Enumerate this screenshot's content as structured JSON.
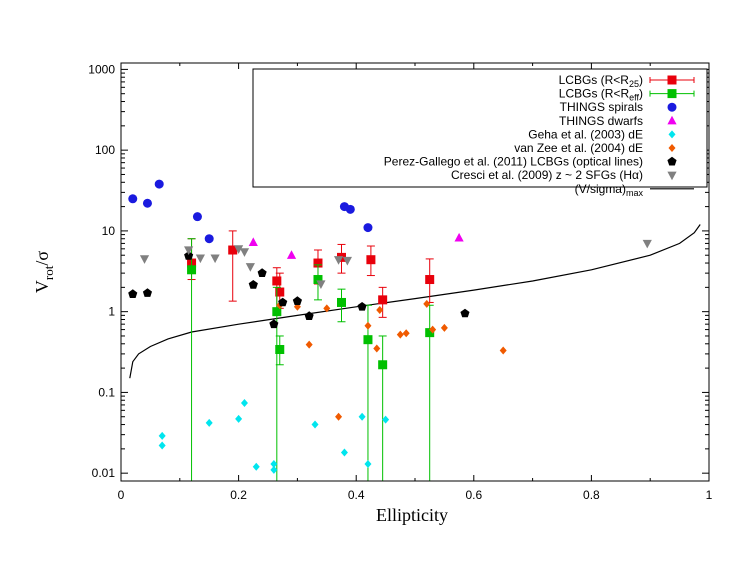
{
  "chart_data": {
    "type": "scatter",
    "xlabel": "Ellipticity",
    "ylabel": {
      "main": "V",
      "sub": "rot",
      "tail": "/σ"
    },
    "xlim": [
      0,
      1
    ],
    "ylim": [
      0.008,
      1200
    ],
    "yscale": "log",
    "x_ticks": [
      0,
      0.2,
      0.4,
      0.6,
      0.8,
      1
    ],
    "x_tick_labels": [
      "0",
      "0.2",
      "0.4",
      "0.6",
      "0.8",
      "1"
    ],
    "y_ticks": [
      0.01,
      0.1,
      1,
      10,
      100,
      1000
    ],
    "y_tick_labels": [
      "0.01",
      "0.1",
      "1",
      "10",
      "100",
      "1000"
    ],
    "grid": false,
    "legend_position": "top-right",
    "series": [
      {
        "id": "lcbg-r25",
        "legend": {
          "main": "LCBGs (R<R",
          "sub": "25",
          "tail": ")"
        },
        "marker": "square",
        "color": "#e8000b",
        "points": [
          {
            "x": 0.12,
            "y": 4.0,
            "ylo": 2.5,
            "yhi": 8.0
          },
          {
            "x": 0.19,
            "y": 5.8,
            "ylo": 1.35,
            "yhi": 10.0
          },
          {
            "x": 0.265,
            "y": 2.4,
            "ylo": 1.1,
            "yhi": 3.5
          },
          {
            "x": 0.27,
            "y": 1.75,
            "ylo": 1.1,
            "yhi": 3.0
          },
          {
            "x": 0.335,
            "y": 4.0,
            "ylo": 2.2,
            "yhi": 5.8
          },
          {
            "x": 0.375,
            "y": 4.7,
            "ylo": 3.0,
            "yhi": 6.8
          },
          {
            "x": 0.425,
            "y": 4.4,
            "ylo": 2.8,
            "yhi": 6.5
          },
          {
            "x": 0.445,
            "y": 1.4,
            "ylo": 0.85,
            "yhi": 2.0
          },
          {
            "x": 0.525,
            "y": 2.5,
            "ylo": 1.3,
            "yhi": 4.5
          }
        ]
      },
      {
        "id": "lcbg-reff",
        "legend": {
          "main": "LCBGs (R<R",
          "sub": "eff",
          "tail": ")"
        },
        "marker": "square",
        "color": "#00c000",
        "points": [
          {
            "x": 0.12,
            "y": 3.3,
            "ylo": 0.008,
            "yhi": 8.0
          },
          {
            "x": 0.265,
            "y": 1.0,
            "ylo": 0.008,
            "yhi": 2.0
          },
          {
            "x": 0.27,
            "y": 0.34,
            "ylo": 0.22,
            "yhi": 0.5
          },
          {
            "x": 0.335,
            "y": 2.5,
            "ylo": 1.4,
            "yhi": 3.8
          },
          {
            "x": 0.375,
            "y": 1.3,
            "ylo": 0.75,
            "yhi": 1.9
          },
          {
            "x": 0.42,
            "y": 0.45,
            "ylo": 0.008,
            "yhi": 1.2
          },
          {
            "x": 0.445,
            "y": 0.22,
            "ylo": 0.008,
            "yhi": 0.5
          },
          {
            "x": 0.525,
            "y": 0.55,
            "ylo": 0.008,
            "yhi": 1.2
          }
        ]
      },
      {
        "id": "things-spirals",
        "legend": {
          "main": "THINGS spirals"
        },
        "marker": "circle",
        "color": "#1a1adf",
        "points": [
          {
            "x": 0.02,
            "y": 25
          },
          {
            "x": 0.045,
            "y": 22
          },
          {
            "x": 0.065,
            "y": 38
          },
          {
            "x": 0.13,
            "y": 15
          },
          {
            "x": 0.15,
            "y": 8.0
          },
          {
            "x": 0.38,
            "y": 20
          },
          {
            "x": 0.39,
            "y": 18.5
          },
          {
            "x": 0.42,
            "y": 11
          }
        ]
      },
      {
        "id": "things-dwarfs",
        "legend": {
          "main": "THINGS dwarfs"
        },
        "marker": "triangle-up",
        "color": "#f000f0",
        "points": [
          {
            "x": 0.225,
            "y": 7.2
          },
          {
            "x": 0.29,
            "y": 5.0
          },
          {
            "x": 0.575,
            "y": 8.2
          }
        ]
      },
      {
        "id": "geha",
        "legend": {
          "main": "Geha et al. (2003) dE"
        },
        "marker": "diamond",
        "color": "#00e5ee",
        "points": [
          {
            "x": 0.07,
            "y": 0.029
          },
          {
            "x": 0.07,
            "y": 0.022
          },
          {
            "x": 0.15,
            "y": 0.042
          },
          {
            "x": 0.2,
            "y": 0.047
          },
          {
            "x": 0.21,
            "y": 0.074
          },
          {
            "x": 0.23,
            "y": 0.012
          },
          {
            "x": 0.26,
            "y": 0.013
          },
          {
            "x": 0.26,
            "y": 0.011
          },
          {
            "x": 0.33,
            "y": 0.04
          },
          {
            "x": 0.38,
            "y": 0.018
          },
          {
            "x": 0.41,
            "y": 0.05
          },
          {
            "x": 0.42,
            "y": 0.013
          },
          {
            "x": 0.45,
            "y": 0.046
          }
        ]
      },
      {
        "id": "vanzee",
        "legend": {
          "main": "van Zee et al. (2004) dE"
        },
        "marker": "diamond",
        "color": "#f05a00",
        "points": [
          {
            "x": 0.27,
            "y": 1.2
          },
          {
            "x": 0.3,
            "y": 1.15
          },
          {
            "x": 0.32,
            "y": 0.39
          },
          {
            "x": 0.35,
            "y": 1.1
          },
          {
            "x": 0.37,
            "y": 0.05
          },
          {
            "x": 0.42,
            "y": 0.67
          },
          {
            "x": 0.435,
            "y": 0.35
          },
          {
            "x": 0.44,
            "y": 1.05
          },
          {
            "x": 0.475,
            "y": 0.52
          },
          {
            "x": 0.485,
            "y": 0.54
          },
          {
            "x": 0.52,
            "y": 1.25
          },
          {
            "x": 0.53,
            "y": 0.6
          },
          {
            "x": 0.55,
            "y": 0.63
          },
          {
            "x": 0.65,
            "y": 0.33
          }
        ]
      },
      {
        "id": "perez",
        "legend": {
          "main": "Perez-Gallego et al. (2011) LCBGs (optical lines)"
        },
        "marker": "pentagon",
        "color": "#000000",
        "points": [
          {
            "x": 0.02,
            "y": 1.65
          },
          {
            "x": 0.045,
            "y": 1.7
          },
          {
            "x": 0.115,
            "y": 4.9
          },
          {
            "x": 0.225,
            "y": 2.15
          },
          {
            "x": 0.24,
            "y": 3.0
          },
          {
            "x": 0.26,
            "y": 0.7
          },
          {
            "x": 0.275,
            "y": 1.3
          },
          {
            "x": 0.3,
            "y": 1.35
          },
          {
            "x": 0.32,
            "y": 0.88
          },
          {
            "x": 0.41,
            "y": 1.15
          },
          {
            "x": 0.585,
            "y": 0.95
          }
        ]
      },
      {
        "id": "cresci",
        "legend": {
          "main": "Cresci et al. (2009) z ~ 2 SFGs (Hα)"
        },
        "marker": "triangle-down",
        "color": "#808080",
        "points": [
          {
            "x": 0.04,
            "y": 4.5
          },
          {
            "x": 0.115,
            "y": 5.8
          },
          {
            "x": 0.135,
            "y": 4.6
          },
          {
            "x": 0.16,
            "y": 4.6
          },
          {
            "x": 0.2,
            "y": 6.0
          },
          {
            "x": 0.21,
            "y": 5.5
          },
          {
            "x": 0.22,
            "y": 3.6
          },
          {
            "x": 0.34,
            "y": 2.2
          },
          {
            "x": 0.37,
            "y": 4.4
          },
          {
            "x": 0.385,
            "y": 4.3
          },
          {
            "x": 0.895,
            "y": 7.0
          }
        ]
      }
    ],
    "curve": {
      "id": "v-sigma-max",
      "legend": {
        "main": "(V/sigma)",
        "sub": "max"
      },
      "color": "#000000",
      "points": [
        {
          "x": 0.015,
          "y": 0.15
        },
        {
          "x": 0.02,
          "y": 0.24
        },
        {
          "x": 0.03,
          "y": 0.3
        },
        {
          "x": 0.05,
          "y": 0.37
        },
        {
          "x": 0.08,
          "y": 0.46
        },
        {
          "x": 0.12,
          "y": 0.56
        },
        {
          "x": 0.2,
          "y": 0.7
        },
        {
          "x": 0.3,
          "y": 0.9
        },
        {
          "x": 0.4,
          "y": 1.15
        },
        {
          "x": 0.5,
          "y": 1.45
        },
        {
          "x": 0.6,
          "y": 1.85
        },
        {
          "x": 0.7,
          "y": 2.4
        },
        {
          "x": 0.8,
          "y": 3.3
        },
        {
          "x": 0.9,
          "y": 5.0
        },
        {
          "x": 0.95,
          "y": 7.0
        },
        {
          "x": 0.975,
          "y": 9.5
        },
        {
          "x": 0.985,
          "y": 12.0
        }
      ]
    }
  }
}
